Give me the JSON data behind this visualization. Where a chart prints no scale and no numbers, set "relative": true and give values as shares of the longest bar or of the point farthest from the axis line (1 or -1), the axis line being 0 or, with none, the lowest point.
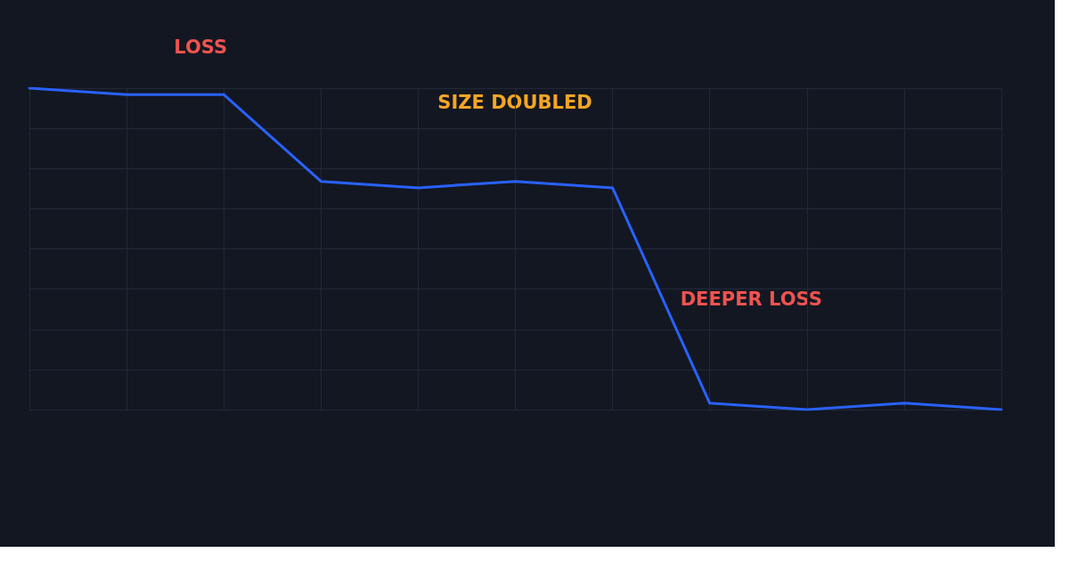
{
  "chart_data": {
    "type": "line",
    "relative": true,
    "grid": true,
    "marker": "none",
    "line_style": "solid",
    "categories": [
      null,
      null,
      null,
      null,
      null,
      null,
      null,
      null,
      null,
      null,
      null
    ],
    "series": [
      {
        "color": "#2962ff",
        "values": [
          1,
          0.98,
          0.98,
          0.71,
          0.69,
          0.71,
          0.69,
          0.02,
          0,
          0.02,
          0
        ]
      }
    ],
    "annotations": [
      "LOSS",
      "SIZE DOUBLED",
      "DEEPER LOSS"
    ]
  }
}
